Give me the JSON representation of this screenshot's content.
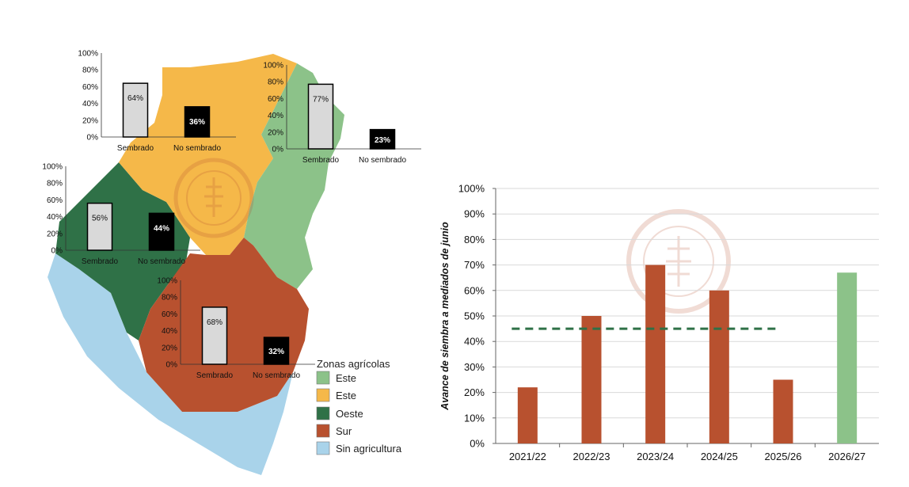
{
  "map": {
    "legend": {
      "title": "Zonas agrícolas",
      "items": [
        {
          "label": "Este",
          "color": "#8cc289"
        },
        {
          "label": "Este",
          "color": "#f5b849"
        },
        {
          "label": "Oeste",
          "color": "#2f7147"
        },
        {
          "label": "Sur",
          "color": "#b8512f"
        },
        {
          "label": "Sin agricultura",
          "color": "#a9d3ea"
        }
      ]
    }
  },
  "chart_data": [
    {
      "type": "bar",
      "zone": "norte",
      "categories": [
        "Sembrado",
        "No sembrado"
      ],
      "values": [
        64,
        36
      ],
      "data_labels": [
        "64%",
        "36%"
      ],
      "ylim": [
        0,
        100
      ],
      "y_ticks": [
        "0%",
        "20%",
        "40%",
        "60%",
        "80%",
        "100%"
      ]
    },
    {
      "type": "bar",
      "zone": "este",
      "categories": [
        "Sembrado",
        "No sembrado"
      ],
      "values": [
        77,
        23
      ],
      "data_labels": [
        "77%",
        "23%"
      ],
      "ylim": [
        0,
        100
      ],
      "y_ticks": [
        "0%",
        "20%",
        "40%",
        "60%",
        "80%",
        "100%"
      ]
    },
    {
      "type": "bar",
      "zone": "oeste",
      "categories": [
        "Sembrado",
        "No sembrado"
      ],
      "values": [
        56,
        44
      ],
      "data_labels": [
        "56%",
        "44%"
      ],
      "ylim": [
        0,
        100
      ],
      "y_ticks": [
        "0%",
        "20%",
        "40%",
        "60%",
        "80%",
        "100%"
      ]
    },
    {
      "type": "bar",
      "zone": "sur",
      "categories": [
        "Sembrado",
        "No sembrado"
      ],
      "values": [
        68,
        32
      ],
      "data_labels": [
        "68%",
        "32%"
      ],
      "ylim": [
        0,
        100
      ],
      "y_ticks": [
        "0%",
        "20%",
        "40%",
        "60%",
        "80%",
        "100%"
      ]
    },
    {
      "type": "bar",
      "categories": [
        "2021/22",
        "2022/23",
        "2023/24",
        "2024/25",
        "2025/26",
        "2026/27"
      ],
      "values": [
        22,
        50,
        70,
        60,
        25,
        67
      ],
      "bar_colors": [
        "#b8512f",
        "#b8512f",
        "#b8512f",
        "#b8512f",
        "#b8512f",
        "#8cc289"
      ],
      "ylabel": "Avance de siembra a mediados de junio",
      "ylim": [
        0,
        100
      ],
      "y_ticks": [
        "0%",
        "10%",
        "20%",
        "30%",
        "40%",
        "50%",
        "60%",
        "70%",
        "80%",
        "90%",
        "100%"
      ],
      "reference_line": {
        "value": 45,
        "from": "2021/22",
        "to": "2025/26",
        "color": "#2f7147",
        "style": "dashed"
      },
      "grid": true
    }
  ]
}
